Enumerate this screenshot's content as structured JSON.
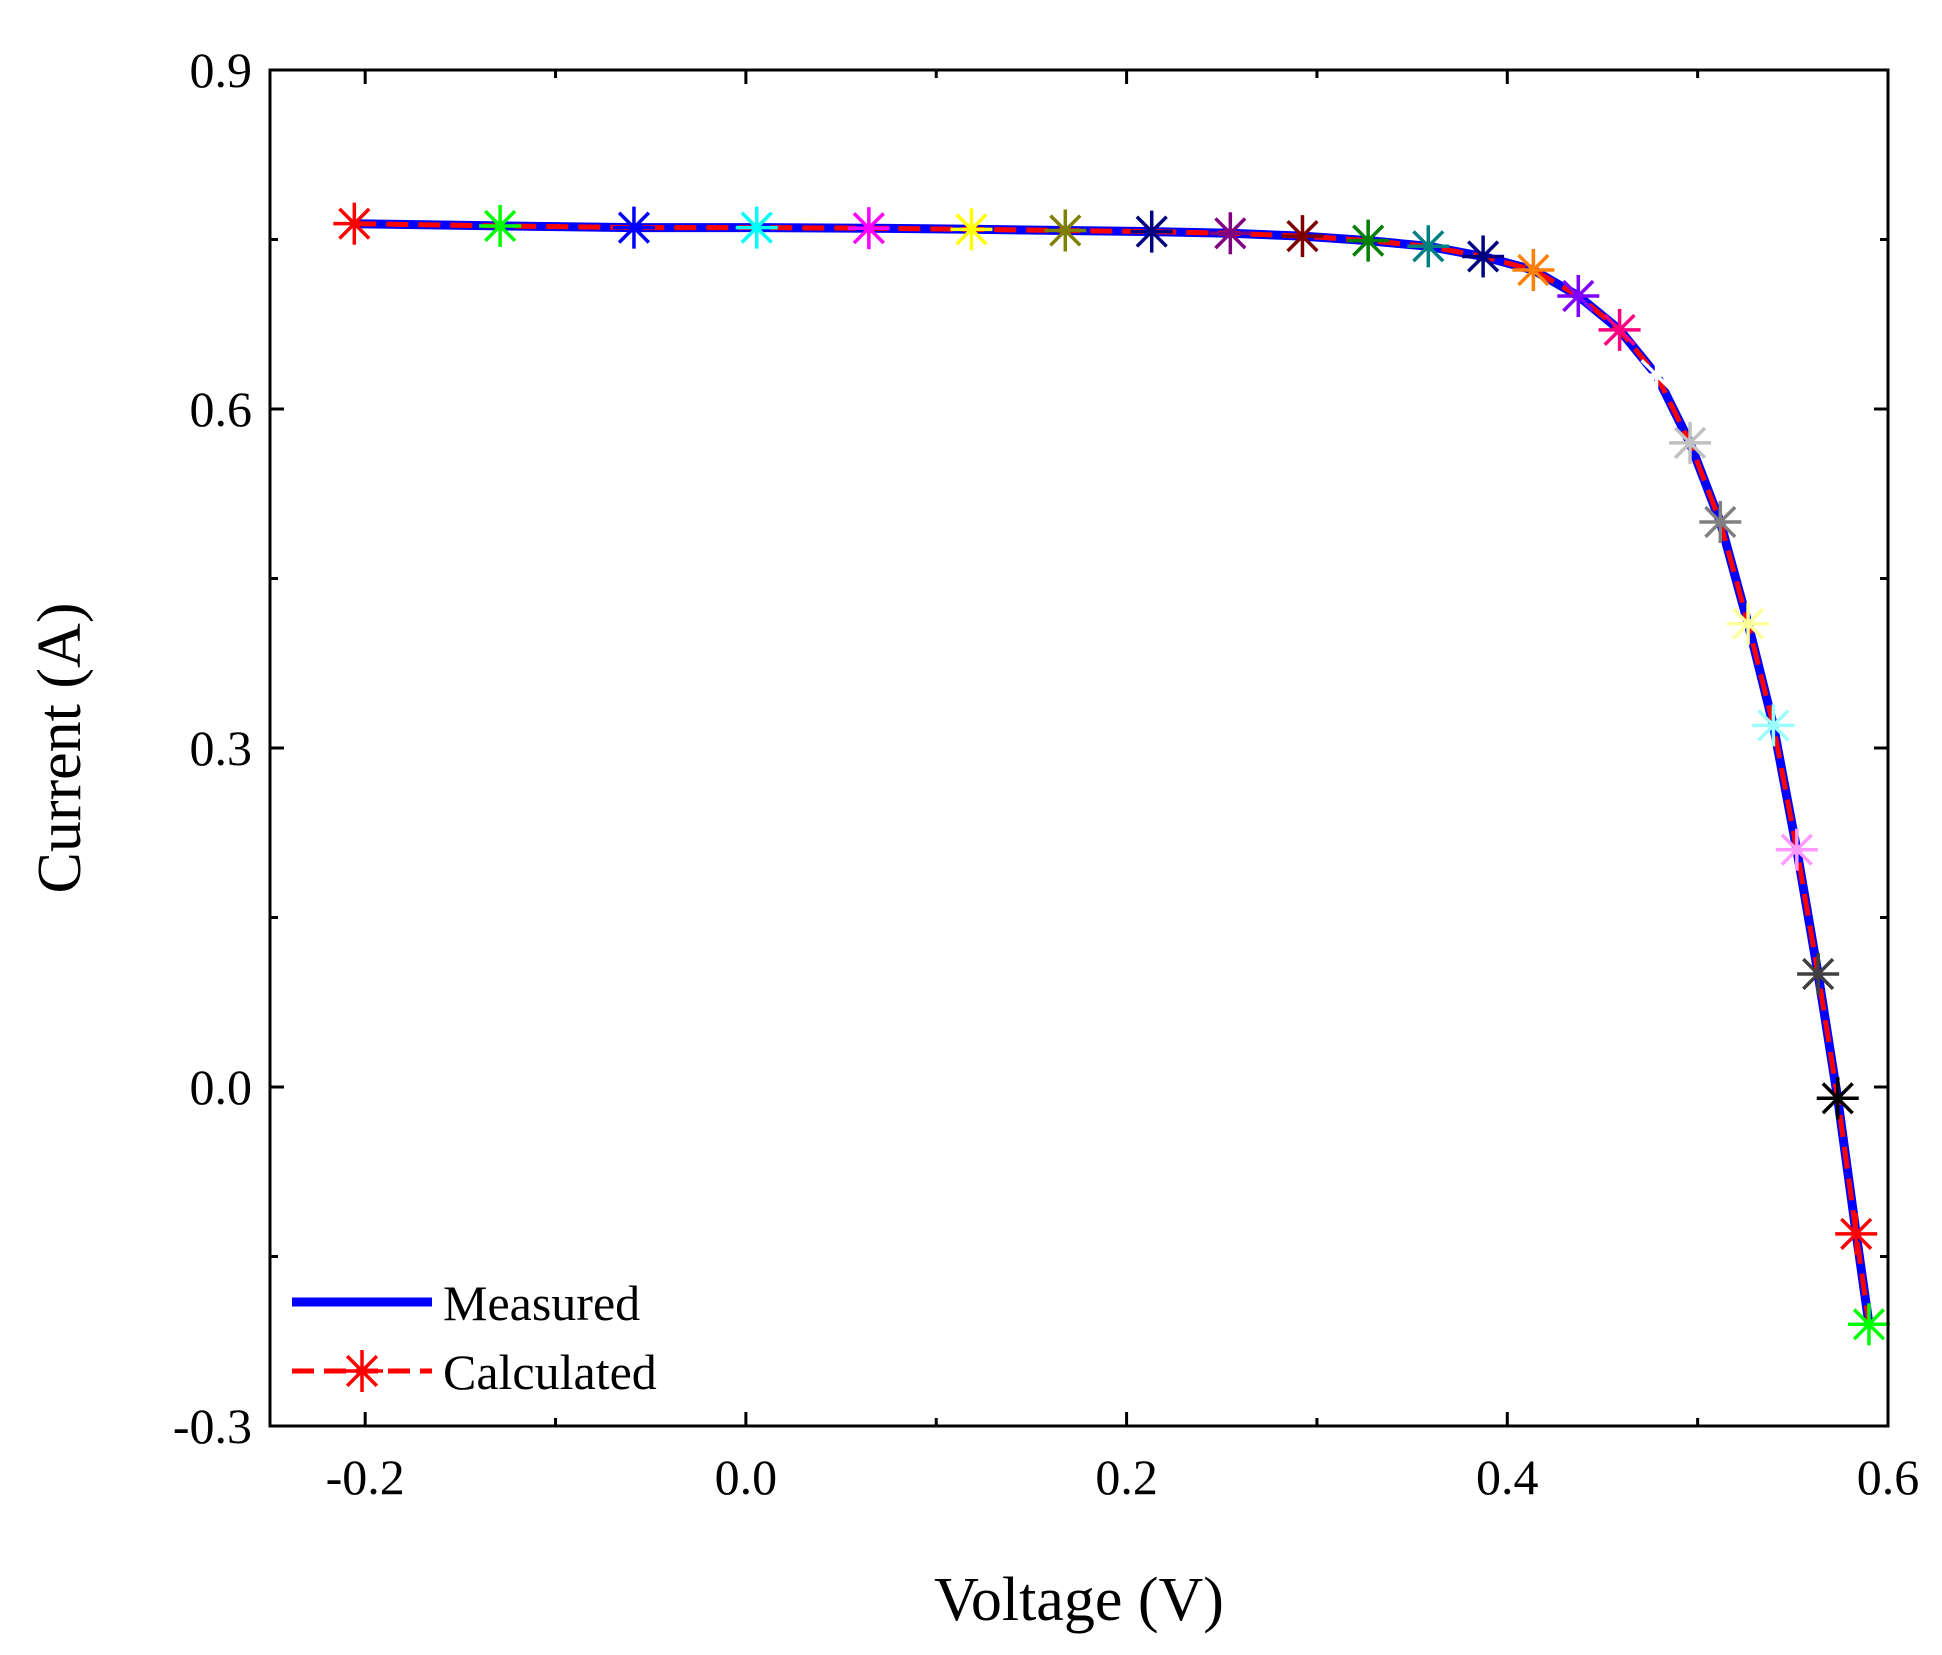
{
  "chart_data": {
    "type": "line",
    "title": "",
    "xlabel": "Voltage (V)",
    "ylabel": "Current (A)",
    "xlim": [
      -0.25,
      0.6
    ],
    "ylim": [
      -0.3,
      0.9
    ],
    "xticks": [
      -0.2,
      0.0,
      0.2,
      0.4,
      0.6
    ],
    "xtick_labels": [
      "-0.2",
      "0.0",
      "0.2",
      "0.4",
      "0.6"
    ],
    "yticks": [
      -0.3,
      0.0,
      0.3,
      0.6,
      0.9
    ],
    "ytick_labels": [
      "-0.3",
      "0.0",
      "0.3",
      "0.6",
      "0.9"
    ],
    "grid": false,
    "legend_position": "bottom-left",
    "series": [
      {
        "name": "Measured",
        "color": "#0000ff",
        "style": "solid",
        "x": [
          -0.2057,
          -0.1291,
          -0.0588,
          0.0057,
          0.0646,
          0.1185,
          0.1678,
          0.2132,
          0.2545,
          0.2924,
          0.3269,
          0.3585,
          0.3873,
          0.4137,
          0.4373,
          0.459,
          0.4784,
          0.496,
          0.5119,
          0.5265,
          0.5398,
          0.5521,
          0.5633,
          0.5736,
          0.5833,
          0.59
        ],
        "y": [
          0.764,
          0.762,
          0.7605,
          0.7605,
          0.76,
          0.759,
          0.758,
          0.757,
          0.7555,
          0.753,
          0.749,
          0.744,
          0.735,
          0.723,
          0.7,
          0.67,
          0.63,
          0.57,
          0.5,
          0.41,
          0.32,
          0.21,
          0.1,
          -0.01,
          -0.13,
          -0.21
        ]
      },
      {
        "name": "Calculated",
        "color": "#ff0000",
        "style": "dash",
        "marker": "asterisk",
        "x": [
          -0.2057,
          -0.1291,
          -0.0588,
          0.0057,
          0.0646,
          0.1185,
          0.1678,
          0.2132,
          0.2545,
          0.2924,
          0.3269,
          0.3585,
          0.3873,
          0.4137,
          0.4373,
          0.459,
          0.4784,
          0.496,
          0.5119,
          0.5265,
          0.5398,
          0.5521,
          0.5633,
          0.5736,
          0.5833,
          0.59
        ],
        "y": [
          0.764,
          0.762,
          0.7605,
          0.7605,
          0.76,
          0.759,
          0.758,
          0.757,
          0.7555,
          0.753,
          0.749,
          0.744,
          0.735,
          0.723,
          0.7,
          0.67,
          0.63,
          0.57,
          0.5,
          0.41,
          0.32,
          0.21,
          0.1,
          -0.01,
          -0.13,
          -0.21
        ],
        "marker_colors": [
          "#ff0000",
          "#00ff00",
          "#0000ff",
          "#00ffff",
          "#ff00ff",
          "#ffff00",
          "#808000",
          "#000080",
          "#800080",
          "#800000",
          "#008000",
          "#008080",
          "#000080",
          "#ff8000",
          "#8000ff",
          "#ff0080",
          "#ffffff",
          "#c0c0c0",
          "#808080",
          "#ffff99",
          "#99ffff",
          "#ff99ff",
          "#404040",
          "#000000",
          "#ff0000",
          "#00ff00"
        ]
      }
    ]
  }
}
